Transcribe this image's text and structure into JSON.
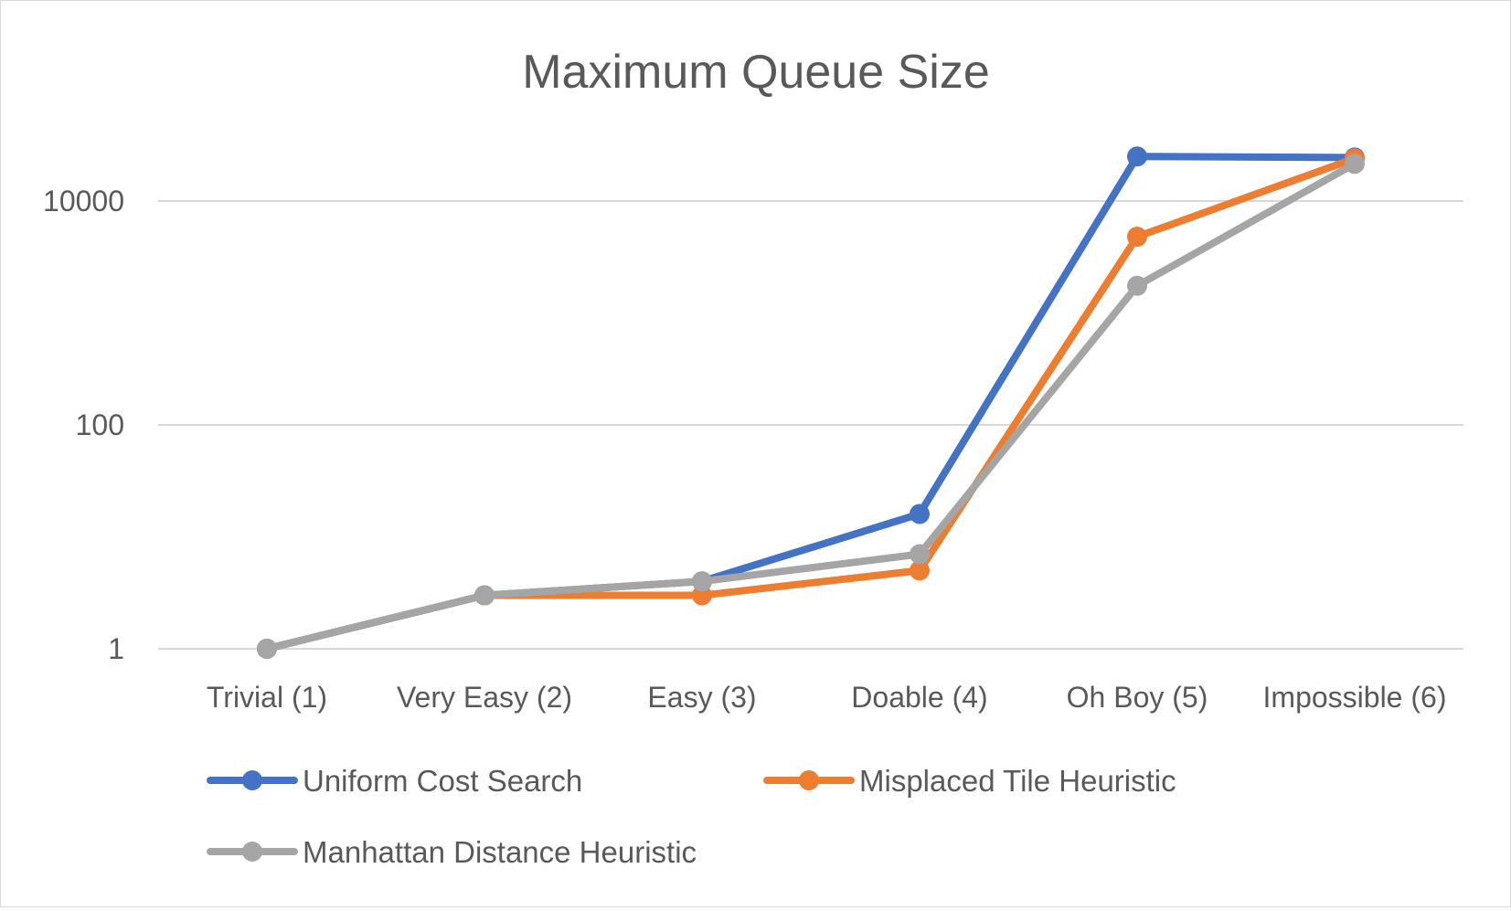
{
  "chart_data": {
    "type": "line",
    "title": "Maximum Queue Size",
    "xlabel": "",
    "ylabel": "",
    "y_scale": "log",
    "ylim": [
      1,
      40000
    ],
    "y_ticks": [
      1,
      100,
      10000
    ],
    "y_tick_labels": [
      "1",
      "100",
      "10000"
    ],
    "grid": true,
    "legend_position": "bottom",
    "categories": [
      "Trivial (1)",
      "Very Easy (2)",
      "Easy (3)",
      "Doable (4)",
      "Oh Boy (5)",
      "Impossible (6)"
    ],
    "series": [
      {
        "name": "Uniform Cost Search",
        "color": "#4472C4",
        "values": [
          1,
          3,
          4,
          16,
          25000,
          24500
        ]
      },
      {
        "name": "Misplaced Tile Heuristic",
        "color": "#ED7D31",
        "values": [
          1,
          3,
          3,
          5,
          4800,
          24000
        ]
      },
      {
        "name": "Manhattan Distance Heuristic",
        "color": "#A5A5A5",
        "values": [
          1,
          3,
          4,
          7,
          1750,
          21500
        ]
      }
    ]
  }
}
